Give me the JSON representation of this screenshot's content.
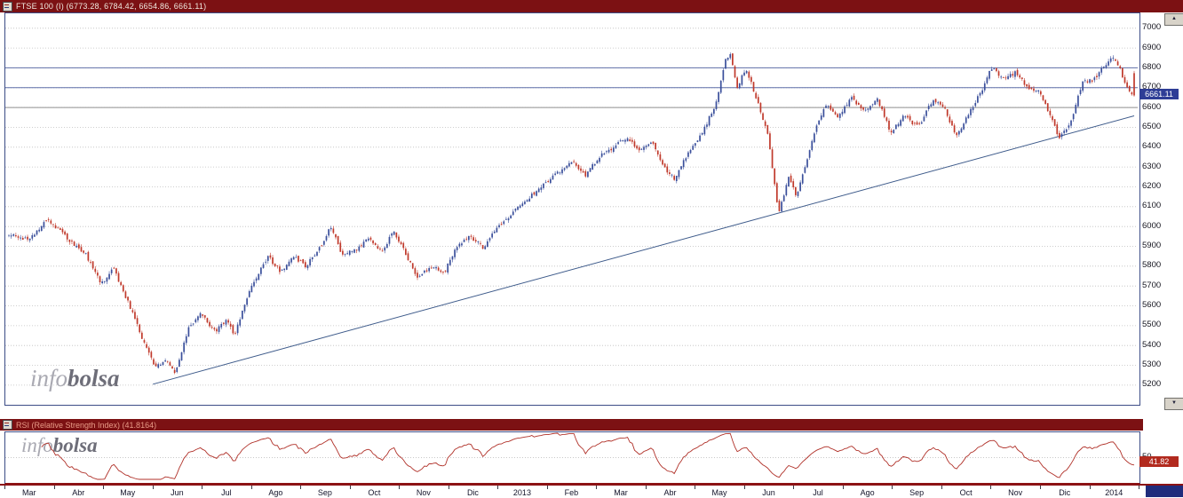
{
  "title_bar": {
    "label": "FTSE 100 (I) (6773.28, 6784.42, 6654.86, 6661.11)",
    "bg": "#7c1113"
  },
  "rsi_bar": {
    "label": "RSI (Relative Strength Index) (41.8164)",
    "bg": "#7c1113"
  },
  "price_tag": {
    "value": "6661.11",
    "bg": "#2e3d96"
  },
  "rsi_tag": {
    "value": "41.82",
    "bg": "#b22a1e"
  },
  "rsi_axis": {
    "gridline_label": "50"
  },
  "watermark": {
    "info": "info",
    "bolsa": "bolsa"
  },
  "scrollbar": {
    "up_arrow": "▲",
    "down_arrow": "▼"
  },
  "chart_data": {
    "type": "candlestick",
    "title": "FTSE 100 (I)",
    "open": 6773.28,
    "high": 6784.42,
    "low": 6654.86,
    "close": 6661.11,
    "ylim": [
      5110,
      7075
    ],
    "yticks": [
      5200,
      5300,
      5400,
      5500,
      5600,
      5700,
      5800,
      5900,
      6000,
      6100,
      6200,
      6300,
      6400,
      6500,
      6600,
      6700,
      6800,
      6900,
      7000
    ],
    "x_labels": [
      "Mar",
      "Abr",
      "May",
      "Jun",
      "Jul",
      "Ago",
      "Sep",
      "Oct",
      "Nov",
      "Dic",
      "2013",
      "Feb",
      "Mar",
      "Abr",
      "May",
      "Jun",
      "Jul",
      "Ago",
      "Sep",
      "Oct",
      "Nov",
      "Dic",
      "2014"
    ],
    "candles_per_label": 21,
    "up_color": "#3a4f9b",
    "down_color": "#c0392b",
    "grid_color": "#bfbfbf",
    "support_lines": [
      {
        "price": 6800,
        "color": "#5f6fa8"
      },
      {
        "price": 6700,
        "color": "#5f6fa8"
      },
      {
        "price": 6600,
        "color": "#8f8f8f"
      }
    ],
    "trendline": {
      "t1": 0.128,
      "price1": 5205,
      "t2": 1.0,
      "price2": 6558,
      "color": "#3d5a8a"
    },
    "close_path": [
      [
        0.0,
        5960
      ],
      [
        0.018,
        5930
      ],
      [
        0.034,
        6040
      ],
      [
        0.05,
        5950
      ],
      [
        0.068,
        5860
      ],
      [
        0.082,
        5710
      ],
      [
        0.093,
        5790
      ],
      [
        0.108,
        5590
      ],
      [
        0.119,
        5430
      ],
      [
        0.13,
        5290
      ],
      [
        0.139,
        5330
      ],
      [
        0.148,
        5255
      ],
      [
        0.159,
        5480
      ],
      [
        0.171,
        5560
      ],
      [
        0.183,
        5470
      ],
      [
        0.194,
        5530
      ],
      [
        0.2,
        5450
      ],
      [
        0.214,
        5680
      ],
      [
        0.23,
        5850
      ],
      [
        0.242,
        5770
      ],
      [
        0.253,
        5850
      ],
      [
        0.264,
        5800
      ],
      [
        0.277,
        5900
      ],
      [
        0.286,
        6000
      ],
      [
        0.296,
        5860
      ],
      [
        0.308,
        5880
      ],
      [
        0.32,
        5940
      ],
      [
        0.332,
        5870
      ],
      [
        0.341,
        5980
      ],
      [
        0.351,
        5880
      ],
      [
        0.363,
        5740
      ],
      [
        0.375,
        5800
      ],
      [
        0.387,
        5770
      ],
      [
        0.398,
        5900
      ],
      [
        0.41,
        5950
      ],
      [
        0.422,
        5890
      ],
      [
        0.432,
        5980
      ],
      [
        0.443,
        6040
      ],
      [
        0.453,
        6100
      ],
      [
        0.465,
        6160
      ],
      [
        0.477,
        6220
      ],
      [
        0.49,
        6280
      ],
      [
        0.502,
        6330
      ],
      [
        0.512,
        6250
      ],
      [
        0.524,
        6350
      ],
      [
        0.537,
        6400
      ],
      [
        0.549,
        6450
      ],
      [
        0.56,
        6380
      ],
      [
        0.571,
        6430
      ],
      [
        0.584,
        6280
      ],
      [
        0.592,
        6240
      ],
      [
        0.604,
        6380
      ],
      [
        0.617,
        6480
      ],
      [
        0.628,
        6620
      ],
      [
        0.637,
        6840
      ],
      [
        0.641,
        6880
      ],
      [
        0.647,
        6700
      ],
      [
        0.655,
        6800
      ],
      [
        0.664,
        6650
      ],
      [
        0.675,
        6450
      ],
      [
        0.684,
        6060
      ],
      [
        0.693,
        6250
      ],
      [
        0.7,
        6150
      ],
      [
        0.708,
        6310
      ],
      [
        0.717,
        6500
      ],
      [
        0.727,
        6620
      ],
      [
        0.737,
        6550
      ],
      [
        0.748,
        6650
      ],
      [
        0.761,
        6580
      ],
      [
        0.772,
        6640
      ],
      [
        0.784,
        6470
      ],
      [
        0.795,
        6560
      ],
      [
        0.808,
        6500
      ],
      [
        0.821,
        6640
      ],
      [
        0.831,
        6600
      ],
      [
        0.842,
        6450
      ],
      [
        0.852,
        6560
      ],
      [
        0.864,
        6680
      ],
      [
        0.873,
        6800
      ],
      [
        0.884,
        6740
      ],
      [
        0.895,
        6780
      ],
      [
        0.905,
        6700
      ],
      [
        0.915,
        6680
      ],
      [
        0.927,
        6550
      ],
      [
        0.933,
        6440
      ],
      [
        0.944,
        6530
      ],
      [
        0.954,
        6730
      ],
      [
        0.964,
        6740
      ],
      [
        0.975,
        6820
      ],
      [
        0.982,
        6860
      ],
      [
        0.988,
        6790
      ],
      [
        0.993,
        6700
      ],
      [
        1.0,
        6661
      ]
    ],
    "noise": {
      "seed": 11,
      "close_jitter": 9,
      "gap": 8,
      "wick": 14
    },
    "rsi": {
      "type": "line",
      "period": 14,
      "last_value": 41.8164,
      "range": [
        10,
        95
      ],
      "gridline": 50,
      "color": "#b03028"
    }
  }
}
